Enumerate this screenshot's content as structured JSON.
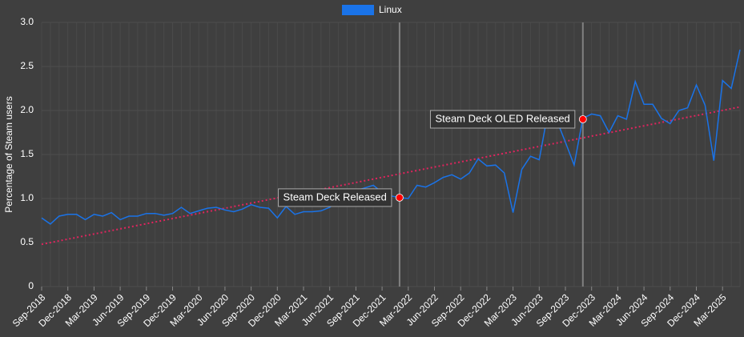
{
  "chart_data": {
    "type": "line",
    "y_label": "Percentage of Steam users",
    "categories": [
      "Sep-2018",
      null,
      null,
      "Dec-2018",
      null,
      null,
      "Mar-2019",
      null,
      null,
      "Jun-2019",
      null,
      null,
      "Sep-2019",
      null,
      null,
      "Dec-2019",
      null,
      null,
      "Mar-2020",
      null,
      null,
      "Jun-2020",
      null,
      null,
      "Sep-2020",
      null,
      null,
      "Dec-2020",
      null,
      null,
      "Mar-2021",
      null,
      null,
      "Jun-2021",
      null,
      null,
      "Sep-2021",
      null,
      null,
      "Dec-2021",
      null,
      null,
      "Mar-2022",
      null,
      null,
      "Jun-2022",
      null,
      null,
      "Sep-2022",
      null,
      null,
      "Dec-2022",
      null,
      null,
      "Mar-2023",
      null,
      null,
      "Jun-2023",
      null,
      null,
      "Sep-2023",
      null,
      null,
      "Dec-2023",
      null,
      null,
      "Mar-2024",
      null,
      null,
      "Jun-2024",
      null,
      null,
      "Sep-2024",
      null,
      null,
      "Dec-2024",
      null,
      null,
      "Mar-2025",
      null,
      null
    ],
    "series": [
      {
        "name": "Linux",
        "color": "#1a73e8",
        "values": [
          0.78,
          0.71,
          0.8,
          0.82,
          0.82,
          0.76,
          0.82,
          0.8,
          0.84,
          0.76,
          0.8,
          0.8,
          0.83,
          0.83,
          0.81,
          0.83,
          0.9,
          0.83,
          0.86,
          0.89,
          0.9,
          0.87,
          0.85,
          0.88,
          0.93,
          0.9,
          0.89,
          0.78,
          0.91,
          0.82,
          0.85,
          0.85,
          0.86,
          0.9,
          0.98,
          1.07,
          1.09,
          1.12,
          1.15,
          1.07,
          1.03,
          1.01,
          1.0,
          1.15,
          1.13,
          1.18,
          1.24,
          1.27,
          1.22,
          1.29,
          1.45,
          1.37,
          1.38,
          1.29,
          0.84,
          1.33,
          1.48,
          1.44,
          1.98,
          1.89,
          1.64,
          1.38,
          1.91,
          1.96,
          1.94,
          1.75,
          1.94,
          1.9,
          2.33,
          2.07,
          2.07,
          1.91,
          1.85,
          2.0,
          2.03,
          2.29,
          2.06,
          1.43,
          2.34,
          2.25,
          2.69
        ]
      }
    ],
    "trend": {
      "start": 0.48,
      "end": 2.04,
      "color": "#e0245e"
    },
    "annotations": [
      {
        "label": "Steam Deck Released",
        "index": 41,
        "value": 1.01,
        "color": "#ff0000"
      },
      {
        "label": "Steam Deck OLED Released",
        "index": 62,
        "value": 1.9,
        "color": "#ff0000"
      }
    ],
    "ylim": [
      0,
      3
    ],
    "yticks": [
      0,
      0.5,
      {
        "value": 1,
        "label": "1.0"
      },
      1.5,
      {
        "value": 2,
        "label": "2.0"
      },
      2.5,
      {
        "value": 3,
        "label": "3.0"
      }
    ],
    "grid": true,
    "legend": "top"
  }
}
